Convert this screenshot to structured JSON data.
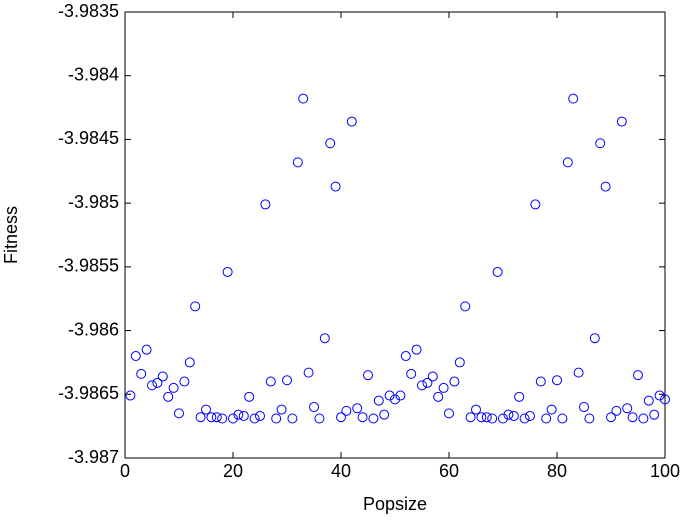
{
  "chart_data": {
    "type": "scatter",
    "xlabel": "Popsize",
    "ylabel": "Fitness",
    "xlim": [
      0,
      100
    ],
    "xticks": [
      0,
      20,
      40,
      60,
      80,
      100
    ],
    "ylim": [
      -3.987,
      -3.9835
    ],
    "yticks": [
      -3.987,
      -3.9865,
      -3.986,
      -3.9855,
      -3.985,
      -3.9845,
      -3.984,
      -3.9835
    ],
    "grid": false,
    "series": [
      {
        "color": "#0000ff",
        "x": [
          1,
          2,
          3,
          4,
          5,
          6,
          7,
          8,
          9,
          10,
          11,
          12,
          13,
          14,
          15,
          16,
          17,
          18,
          19,
          20,
          21,
          22,
          23,
          24,
          25,
          26,
          27,
          28,
          29,
          30,
          31,
          32,
          33,
          34,
          35,
          36,
          37,
          38,
          39,
          40,
          41,
          42,
          43,
          44,
          45,
          46,
          47,
          48,
          49,
          50,
          51,
          52,
          53,
          54,
          55,
          56,
          57,
          58,
          59,
          60,
          61,
          62,
          63,
          64,
          65,
          66,
          67,
          68,
          69,
          70,
          71,
          72,
          73,
          74,
          75,
          76,
          77,
          78,
          79,
          80,
          81,
          82,
          83,
          84,
          85,
          86,
          87,
          88,
          89,
          90,
          91,
          92,
          93,
          94,
          95,
          96,
          97,
          98,
          99,
          100
        ],
        "values": [
          -3.98651,
          -3.9862,
          -3.98634,
          -3.98615,
          -3.98643,
          -3.98641,
          -3.98636,
          -3.98652,
          -3.98645,
          -3.98665,
          -3.9864,
          -3.98625,
          -3.98581,
          -3.98668,
          -3.98662,
          -3.98668,
          -3.98668,
          -3.98669,
          -3.98554,
          -3.98669,
          -3.98666,
          -3.98667,
          -3.98652,
          -3.98669,
          -3.98667,
          -3.98501,
          -3.9864,
          -3.98669,
          -3.98662,
          -3.98639,
          -3.98669,
          -3.98468,
          -3.98418,
          -3.98633,
          -3.9866,
          -3.98669,
          -3.98606,
          -3.98453,
          -3.98487,
          -3.98668,
          -3.98663,
          -3.98436,
          -3.98661,
          -3.98668,
          -3.98635,
          -3.98669,
          -3.98655,
          -3.98666,
          -3.98651,
          -3.98654,
          -3.98651,
          -3.9862,
          -3.98634,
          -3.98615,
          -3.98643,
          -3.98641,
          -3.98636,
          -3.98652,
          -3.98645,
          -3.98665,
          -3.9864,
          -3.98625,
          -3.98581,
          -3.98668,
          -3.98662,
          -3.98668,
          -3.98668,
          -3.98669,
          -3.98554,
          -3.98669,
          -3.98666,
          -3.98667,
          -3.98652,
          -3.98669,
          -3.98667,
          -3.98501,
          -3.9864,
          -3.98669,
          -3.98662,
          -3.98639,
          -3.98669,
          -3.98468,
          -3.98418,
          -3.98633,
          -3.9866,
          -3.98669,
          -3.98606,
          -3.98453,
          -3.98487,
          -3.98668,
          -3.98663,
          -3.98436,
          -3.98661,
          -3.98668,
          -3.98635,
          -3.98669,
          -3.98655,
          -3.98666,
          -3.98651,
          -3.98654
        ]
      }
    ]
  }
}
